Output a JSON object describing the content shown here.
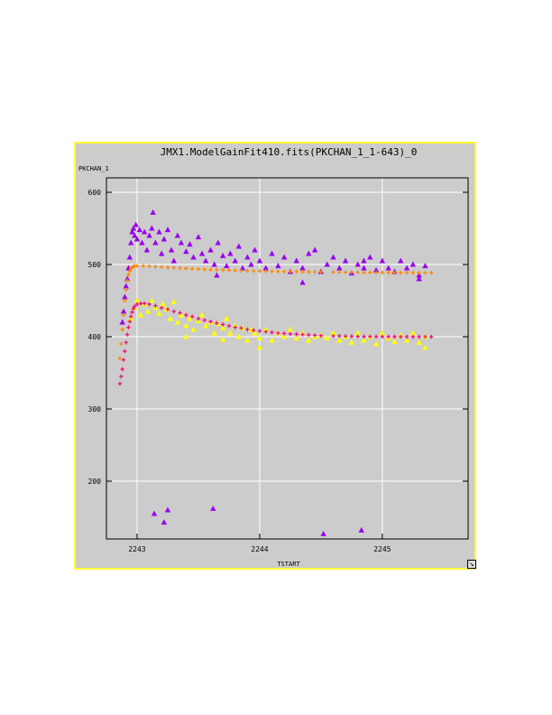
{
  "chart_data": {
    "type": "scatter",
    "title": "JMX1.ModelGainFit410.fits(PKCHAN_1_1-643)_0",
    "xlabel": "TSTART",
    "ylabel": "PKCHAN_1",
    "xlim": [
      2242.75,
      2245.7
    ],
    "ylim": [
      120,
      620
    ],
    "xticks": [
      "2243",
      "2244",
      "2245"
    ],
    "yticks": [
      "200",
      "300",
      "400",
      "500",
      "600"
    ],
    "grid": true,
    "series": [
      {
        "marker": "triangle",
        "color": "#9900ee",
        "points": [
          [
            2242.88,
            420
          ],
          [
            2242.89,
            435
          ],
          [
            2242.9,
            455
          ],
          [
            2242.91,
            470
          ],
          [
            2242.92,
            480
          ],
          [
            2242.93,
            495
          ],
          [
            2242.94,
            510
          ],
          [
            2242.95,
            530
          ],
          [
            2242.96,
            545
          ],
          [
            2242.97,
            550
          ],
          [
            2242.98,
            540
          ],
          [
            2242.99,
            555
          ],
          [
            2243.0,
            535
          ],
          [
            2243.02,
            548
          ],
          [
            2243.04,
            530
          ],
          [
            2243.06,
            545
          ],
          [
            2243.08,
            520
          ],
          [
            2243.1,
            540
          ],
          [
            2243.12,
            550
          ],
          [
            2243.13,
            572
          ],
          [
            2243.15,
            530
          ],
          [
            2243.18,
            545
          ],
          [
            2243.2,
            515
          ],
          [
            2243.22,
            535
          ],
          [
            2243.25,
            548
          ],
          [
            2243.28,
            520
          ],
          [
            2243.3,
            505
          ],
          [
            2243.33,
            540
          ],
          [
            2243.36,
            530
          ],
          [
            2243.4,
            518
          ],
          [
            2243.43,
            528
          ],
          [
            2243.46,
            510
          ],
          [
            2243.5,
            538
          ],
          [
            2243.53,
            515
          ],
          [
            2243.56,
            505
          ],
          [
            2243.6,
            520
          ],
          [
            2243.63,
            500
          ],
          [
            2243.66,
            530
          ],
          [
            2243.7,
            512
          ],
          [
            2243.73,
            498
          ],
          [
            2243.76,
            515
          ],
          [
            2243.8,
            505
          ],
          [
            2243.83,
            525
          ],
          [
            2243.86,
            495
          ],
          [
            2243.9,
            510
          ],
          [
            2243.93,
            500
          ],
          [
            2243.96,
            520
          ],
          [
            2244.0,
            505
          ],
          [
            2244.05,
            495
          ],
          [
            2244.1,
            515
          ],
          [
            2244.15,
            498
          ],
          [
            2244.2,
            510
          ],
          [
            2244.25,
            490
          ],
          [
            2244.3,
            505
          ],
          [
            2244.35,
            495
          ],
          [
            2244.4,
            515
          ],
          [
            2244.45,
            520
          ],
          [
            2244.5,
            490
          ],
          [
            2244.55,
            500
          ],
          [
            2244.6,
            510
          ],
          [
            2244.65,
            495
          ],
          [
            2244.7,
            505
          ],
          [
            2244.75,
            488
          ],
          [
            2244.8,
            500
          ],
          [
            2244.85,
            495
          ],
          [
            2244.9,
            510
          ],
          [
            2244.95,
            492
          ],
          [
            2245.0,
            505
          ],
          [
            2245.05,
            495
          ],
          [
            2245.1,
            490
          ],
          [
            2245.15,
            505
          ],
          [
            2245.2,
            495
          ],
          [
            2245.25,
            500
          ],
          [
            2245.3,
            485
          ],
          [
            2245.35,
            498
          ],
          [
            2243.14,
            155
          ],
          [
            2243.22,
            143
          ],
          [
            2243.25,
            160
          ],
          [
            2243.62,
            162
          ],
          [
            2244.52,
            127
          ],
          [
            2244.83,
            132
          ],
          [
            2243.65,
            485
          ],
          [
            2244.35,
            475
          ],
          [
            2244.85,
            505
          ],
          [
            2245.3,
            480
          ]
        ]
      },
      {
        "marker": "triangle",
        "color": "#ffff00",
        "points": [
          [
            2242.95,
            425
          ],
          [
            2242.98,
            440
          ],
          [
            2243.0,
            450
          ],
          [
            2243.03,
            430
          ],
          [
            2243.06,
            445
          ],
          [
            2243.09,
            435
          ],
          [
            2243.12,
            450
          ],
          [
            2243.15,
            440
          ],
          [
            2243.18,
            432
          ],
          [
            2243.21,
            445
          ],
          [
            2243.24,
            438
          ],
          [
            2243.27,
            425
          ],
          [
            2243.3,
            448
          ],
          [
            2243.33,
            420
          ],
          [
            2243.36,
            430
          ],
          [
            2243.4,
            415
          ],
          [
            2243.43,
            425
          ],
          [
            2243.46,
            410
          ],
          [
            2243.5,
            422
          ],
          [
            2243.53,
            430
          ],
          [
            2243.56,
            415
          ],
          [
            2243.6,
            420
          ],
          [
            2243.63,
            405
          ],
          [
            2243.66,
            418
          ],
          [
            2243.7,
            412
          ],
          [
            2243.73,
            425
          ],
          [
            2243.76,
            405
          ],
          [
            2243.8,
            415
          ],
          [
            2243.83,
            400
          ],
          [
            2243.86,
            412
          ],
          [
            2243.9,
            395
          ],
          [
            2243.93,
            410
          ],
          [
            2243.96,
            405
          ],
          [
            2244.0,
            398
          ],
          [
            2244.05,
            410
          ],
          [
            2244.1,
            395
          ],
          [
            2244.15,
            405
          ],
          [
            2244.2,
            400
          ],
          [
            2244.25,
            410
          ],
          [
            2244.3,
            398
          ],
          [
            2244.35,
            405
          ],
          [
            2244.4,
            395
          ],
          [
            2244.45,
            400
          ],
          [
            2244.55,
            398
          ],
          [
            2244.6,
            405
          ],
          [
            2244.65,
            395
          ],
          [
            2244.7,
            400
          ],
          [
            2244.75,
            392
          ],
          [
            2244.8,
            405
          ],
          [
            2244.85,
            395
          ],
          [
            2244.9,
            400
          ],
          [
            2244.95,
            390
          ],
          [
            2245.0,
            405
          ],
          [
            2245.05,
            398
          ],
          [
            2245.1,
            393
          ],
          [
            2245.15,
            402
          ],
          [
            2245.2,
            395
          ],
          [
            2245.25,
            405
          ],
          [
            2245.3,
            392
          ],
          [
            2245.35,
            385
          ],
          [
            2243.4,
            400
          ],
          [
            2243.7,
            396
          ],
          [
            2244.0,
            385
          ],
          [
            2244.5,
            402
          ],
          [
            2245.35,
            400
          ]
        ]
      },
      {
        "marker": "plus",
        "color": "#ff8800",
        "points": [
          [
            2242.86,
            370
          ],
          [
            2242.87,
            390
          ],
          [
            2242.88,
            410
          ],
          [
            2242.89,
            430
          ],
          [
            2242.9,
            450
          ],
          [
            2242.91,
            465
          ],
          [
            2242.92,
            478
          ],
          [
            2242.93,
            486
          ],
          [
            2242.94,
            491
          ],
          [
            2242.95,
            494
          ],
          [
            2242.96,
            496
          ],
          [
            2242.97,
            497
          ],
          [
            2242.98,
            498
          ],
          [
            2243.0,
            498
          ],
          [
            2243.05,
            498
          ],
          [
            2243.1,
            497.5
          ],
          [
            2243.15,
            497
          ],
          [
            2243.2,
            496.5
          ],
          [
            2243.25,
            496
          ],
          [
            2243.3,
            495.5
          ],
          [
            2243.35,
            495
          ],
          [
            2243.4,
            494.6
          ],
          [
            2243.45,
            494.2
          ],
          [
            2243.5,
            493.8
          ],
          [
            2243.55,
            493.4
          ],
          [
            2243.6,
            493
          ],
          [
            2243.65,
            492.7
          ],
          [
            2243.7,
            492.4
          ],
          [
            2243.75,
            492.1
          ],
          [
            2243.8,
            491.8
          ],
          [
            2243.85,
            491.5
          ],
          [
            2243.9,
            491.3
          ],
          [
            2243.95,
            491.1
          ],
          [
            2244.0,
            490.9
          ],
          [
            2244.05,
            490.7
          ],
          [
            2244.1,
            490.5
          ],
          [
            2244.15,
            490.3
          ],
          [
            2244.2,
            490.2
          ],
          [
            2244.25,
            490.1
          ],
          [
            2244.3,
            490
          ],
          [
            2244.35,
            489.9
          ],
          [
            2244.4,
            489.8
          ],
          [
            2244.45,
            489.7
          ],
          [
            2244.5,
            489.6
          ],
          [
            2244.6,
            489.5
          ],
          [
            2244.65,
            489.4
          ],
          [
            2244.7,
            489.3
          ],
          [
            2244.75,
            489.2
          ],
          [
            2244.8,
            489.1
          ],
          [
            2244.85,
            489
          ],
          [
            2244.9,
            489
          ],
          [
            2244.95,
            488.9
          ],
          [
            2245.0,
            488.9
          ],
          [
            2245.05,
            488.8
          ],
          [
            2245.1,
            488.8
          ],
          [
            2245.15,
            488.7
          ],
          [
            2245.2,
            488.7
          ],
          [
            2245.25,
            488.6
          ],
          [
            2245.3,
            488.6
          ],
          [
            2245.35,
            488.5
          ],
          [
            2245.4,
            488.5
          ]
        ]
      },
      {
        "marker": "plus",
        "color": "#ee1177",
        "points": [
          [
            2242.86,
            335
          ],
          [
            2242.87,
            345
          ],
          [
            2242.88,
            355
          ],
          [
            2242.89,
            368
          ],
          [
            2242.9,
            380
          ],
          [
            2242.91,
            392
          ],
          [
            2242.92,
            403
          ],
          [
            2242.93,
            413
          ],
          [
            2242.94,
            421
          ],
          [
            2242.95,
            428
          ],
          [
            2242.96,
            434
          ],
          [
            2242.97,
            439
          ],
          [
            2242.98,
            442
          ],
          [
            2243.0,
            445
          ],
          [
            2243.03,
            446
          ],
          [
            2243.06,
            446
          ],
          [
            2243.1,
            445
          ],
          [
            2243.15,
            443
          ],
          [
            2243.2,
            440
          ],
          [
            2243.25,
            438
          ],
          [
            2243.3,
            435
          ],
          [
            2243.35,
            433
          ],
          [
            2243.4,
            430
          ],
          [
            2243.45,
            428
          ],
          [
            2243.5,
            425
          ],
          [
            2243.55,
            423
          ],
          [
            2243.6,
            421
          ],
          [
            2243.65,
            419
          ],
          [
            2243.7,
            417
          ],
          [
            2243.75,
            415
          ],
          [
            2243.8,
            413
          ],
          [
            2243.85,
            412
          ],
          [
            2243.9,
            410
          ],
          [
            2243.95,
            409
          ],
          [
            2244.0,
            408
          ],
          [
            2244.05,
            407
          ],
          [
            2244.1,
            406
          ],
          [
            2244.15,
            405
          ],
          [
            2244.2,
            404.5
          ],
          [
            2244.25,
            404
          ],
          [
            2244.3,
            403.5
          ],
          [
            2244.35,
            403
          ],
          [
            2244.4,
            402.5
          ],
          [
            2244.45,
            402
          ],
          [
            2244.5,
            401.5
          ],
          [
            2244.6,
            401.2
          ],
          [
            2244.65,
            401
          ],
          [
            2244.7,
            400.8
          ],
          [
            2244.75,
            400.6
          ],
          [
            2244.8,
            400.5
          ],
          [
            2244.85,
            400.4
          ],
          [
            2244.9,
            400.3
          ],
          [
            2244.95,
            400.2
          ],
          [
            2245.0,
            400.2
          ],
          [
            2245.05,
            400.1
          ],
          [
            2245.1,
            400.1
          ],
          [
            2245.15,
            400
          ],
          [
            2245.2,
            400
          ],
          [
            2245.25,
            400
          ],
          [
            2245.3,
            400
          ],
          [
            2245.35,
            400
          ],
          [
            2245.4,
            400
          ]
        ]
      }
    ]
  },
  "window": {
    "resize_glyph": "↘"
  }
}
